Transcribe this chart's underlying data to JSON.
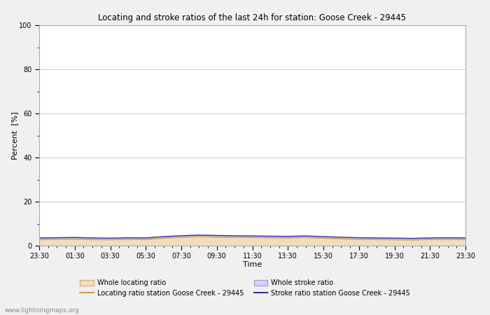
{
  "title": "Locating and stroke ratios of the last 24h for station: Goose Creek - 29445",
  "xlabel": "Time",
  "ylabel": "Percent  [%]",
  "ylim": [
    0,
    100
  ],
  "yticks": [
    0,
    20,
    40,
    60,
    80,
    100
  ],
  "yminor_ticks": [
    10,
    30,
    50,
    70,
    90
  ],
  "x_labels": [
    "23:30",
    "01:30",
    "03:30",
    "05:30",
    "07:30",
    "09:30",
    "11:30",
    "13:30",
    "15:30",
    "17:30",
    "19:30",
    "21:30",
    "23:30"
  ],
  "background_color": "#f0f0f0",
  "plot_bg_color": "#ffffff",
  "grid_color": "#d0d0d0",
  "watermark": "www.lightningmaps.org",
  "fill_locating_color": "#f5deb3",
  "fill_stroke_color": "#c8c8ff",
  "line_locating_color": "#c8a050",
  "line_stroke_color": "#3030a0",
  "whole_locating_ratio": [
    3.2,
    3.3,
    3.4,
    3.2,
    3.1,
    3.3,
    3.2,
    3.8,
    4.2,
    4.5,
    4.3,
    4.2,
    4.1,
    4.0,
    3.9,
    4.1,
    3.8,
    3.5,
    3.3,
    3.2,
    3.1,
    3.0,
    3.2,
    3.3,
    3.2
  ],
  "locating_ratio_station": [
    2.8,
    2.9,
    3.0,
    2.8,
    2.7,
    2.9,
    2.8,
    3.4,
    3.8,
    4.1,
    3.9,
    3.8,
    3.7,
    3.6,
    3.5,
    3.7,
    3.4,
    3.1,
    2.9,
    2.8,
    2.7,
    2.6,
    2.8,
    2.9,
    2.8
  ],
  "whole_stroke_ratio": [
    4.0,
    4.1,
    4.2,
    4.0,
    3.9,
    4.1,
    4.0,
    4.6,
    5.0,
    5.3,
    5.1,
    5.0,
    4.9,
    4.8,
    4.7,
    4.9,
    4.6,
    4.3,
    4.1,
    4.0,
    3.9,
    3.8,
    4.0,
    4.1,
    4.0
  ],
  "stroke_ratio_station": [
    3.5,
    3.6,
    3.7,
    3.5,
    3.4,
    3.6,
    3.5,
    4.1,
    4.5,
    4.8,
    4.6,
    4.5,
    4.4,
    4.3,
    4.2,
    4.4,
    4.1,
    3.8,
    3.6,
    3.5,
    3.4,
    3.3,
    3.5,
    3.6,
    3.5
  ]
}
